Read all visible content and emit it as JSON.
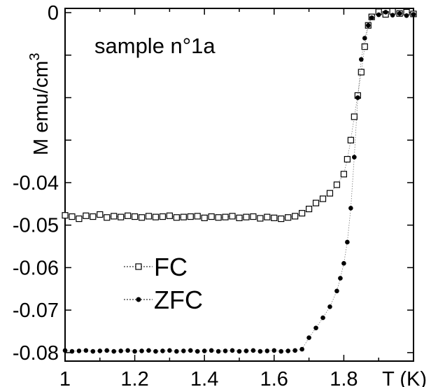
{
  "chart_data": {
    "type": "scatter",
    "title": "",
    "annotation": "sample n°1a",
    "ylabel_parts": {
      "main": "M  emu/cm",
      "sup": "3"
    },
    "xlabel": "T (K)",
    "xlim": [
      1.0,
      2.0
    ],
    "ylim": [
      -0.082,
      0.001
    ],
    "x_ticks": [
      1,
      1.2,
      1.4,
      1.6,
      1.8
    ],
    "x_tick_labels": [
      "1",
      "1.2",
      "1.4",
      "1.6",
      "1.8"
    ],
    "y_ticks": [
      0,
      -0.01,
      -0.02,
      -0.03,
      -0.04,
      -0.05,
      -0.06,
      -0.07,
      -0.08
    ],
    "y_tick_labels": [
      "0",
      "",
      "",
      "",
      "-0.04",
      "-0.05",
      "-0.06",
      "-0.07",
      "-0.08"
    ],
    "grid": false,
    "legend_position": "lower-left",
    "series": [
      {
        "name": "FC",
        "marker": "open-square",
        "color": "#000000",
        "x": [
          1.0,
          1.02,
          1.04,
          1.06,
          1.08,
          1.1,
          1.12,
          1.14,
          1.16,
          1.18,
          1.2,
          1.22,
          1.24,
          1.26,
          1.28,
          1.3,
          1.32,
          1.34,
          1.36,
          1.38,
          1.4,
          1.42,
          1.44,
          1.46,
          1.48,
          1.5,
          1.52,
          1.54,
          1.56,
          1.58,
          1.6,
          1.62,
          1.64,
          1.66,
          1.68,
          1.7,
          1.72,
          1.74,
          1.76,
          1.78,
          1.8,
          1.81,
          1.82,
          1.83,
          1.84,
          1.85,
          1.86,
          1.87,
          1.88,
          1.9,
          1.92,
          1.94,
          1.96,
          1.98,
          2.0
        ],
        "y": [
          -0.0477,
          -0.048,
          -0.0485,
          -0.0478,
          -0.048,
          -0.0475,
          -0.0482,
          -0.0479,
          -0.0481,
          -0.0478,
          -0.048,
          -0.0482,
          -0.0479,
          -0.0481,
          -0.048,
          -0.0478,
          -0.0482,
          -0.0481,
          -0.048,
          -0.0479,
          -0.0483,
          -0.048,
          -0.0482,
          -0.0481,
          -0.0479,
          -0.0483,
          -0.0481,
          -0.048,
          -0.0484,
          -0.0481,
          -0.0483,
          -0.0485,
          -0.0482,
          -0.0479,
          -0.0472,
          -0.0462,
          -0.0448,
          -0.0438,
          -0.0425,
          -0.0405,
          -0.038,
          -0.0345,
          -0.03,
          -0.0245,
          -0.0195,
          -0.014,
          -0.008,
          -0.003,
          -0.001,
          0.0002,
          -0.0004,
          0.0003,
          -0.0002,
          0.0001,
          -0.0003
        ]
      },
      {
        "name": "ZFC",
        "marker": "filled-circle",
        "color": "#000000",
        "x": [
          1.0,
          1.02,
          1.04,
          1.06,
          1.08,
          1.1,
          1.12,
          1.14,
          1.16,
          1.18,
          1.2,
          1.22,
          1.24,
          1.26,
          1.28,
          1.3,
          1.32,
          1.34,
          1.36,
          1.38,
          1.4,
          1.42,
          1.44,
          1.46,
          1.48,
          1.5,
          1.52,
          1.54,
          1.56,
          1.58,
          1.6,
          1.62,
          1.64,
          1.66,
          1.68,
          1.7,
          1.72,
          1.74,
          1.76,
          1.78,
          1.79,
          1.8,
          1.81,
          1.82,
          1.83,
          1.84,
          1.85,
          1.86,
          1.87,
          1.88,
          1.9,
          1.92,
          1.94,
          1.96,
          1.98,
          2.0
        ],
        "y": [
          -0.0795,
          -0.0797,
          -0.0796,
          -0.0795,
          -0.0797,
          -0.0796,
          -0.0795,
          -0.0797,
          -0.0796,
          -0.0795,
          -0.0797,
          -0.0796,
          -0.0795,
          -0.0797,
          -0.0796,
          -0.0795,
          -0.0797,
          -0.0796,
          -0.0795,
          -0.0797,
          -0.0796,
          -0.0795,
          -0.0797,
          -0.0796,
          -0.0795,
          -0.0797,
          -0.0796,
          -0.0795,
          -0.0797,
          -0.0796,
          -0.0795,
          -0.0797,
          -0.0796,
          -0.0795,
          -0.0792,
          -0.0765,
          -0.0742,
          -0.0718,
          -0.0692,
          -0.0655,
          -0.0625,
          -0.059,
          -0.054,
          -0.046,
          -0.034,
          -0.02,
          -0.011,
          -0.006,
          -0.003,
          -0.0012,
          -0.0005,
          0.0001,
          -0.0006,
          -0.0002,
          -0.0007,
          -0.0004
        ]
      }
    ]
  }
}
